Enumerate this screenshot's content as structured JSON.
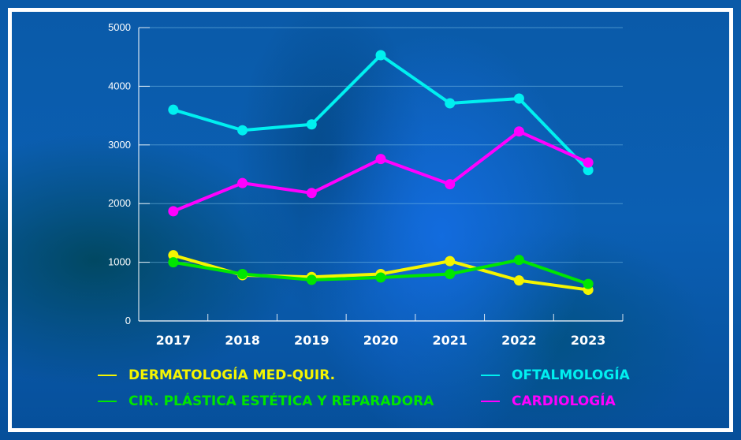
{
  "chart_data": {
    "type": "line",
    "title": "",
    "xlabel": "",
    "ylabel": "",
    "categories": [
      "2017",
      "2018",
      "2019",
      "2020",
      "2021",
      "2022",
      "2023"
    ],
    "ylim": [
      0,
      5000
    ],
    "yticks": [
      "0",
      "1000",
      "2000",
      "3000",
      "4000",
      "5000"
    ],
    "grid": true,
    "legend_position": "bottom",
    "series": [
      {
        "name": "DERMATOLOGÍA MED-QUIR.",
        "color": "#f5f500",
        "values": [
          1120,
          780,
          750,
          800,
          1020,
          690,
          530
        ]
      },
      {
        "name": "CIR. PLÁSTICA ESTÉTICA Y REPARADORA",
        "color": "#00e600",
        "values": [
          1000,
          800,
          700,
          740,
          800,
          1040,
          630
        ]
      },
      {
        "name": "OFTALMOLOGÍA",
        "color": "#00f0f0",
        "values": [
          3600,
          3250,
          3350,
          4530,
          3710,
          3790,
          2570
        ]
      },
      {
        "name": "CARDIOLOGÍA",
        "color": "#ff00ff",
        "values": [
          1870,
          2350,
          2180,
          2760,
          2330,
          3230,
          2700
        ]
      }
    ]
  }
}
